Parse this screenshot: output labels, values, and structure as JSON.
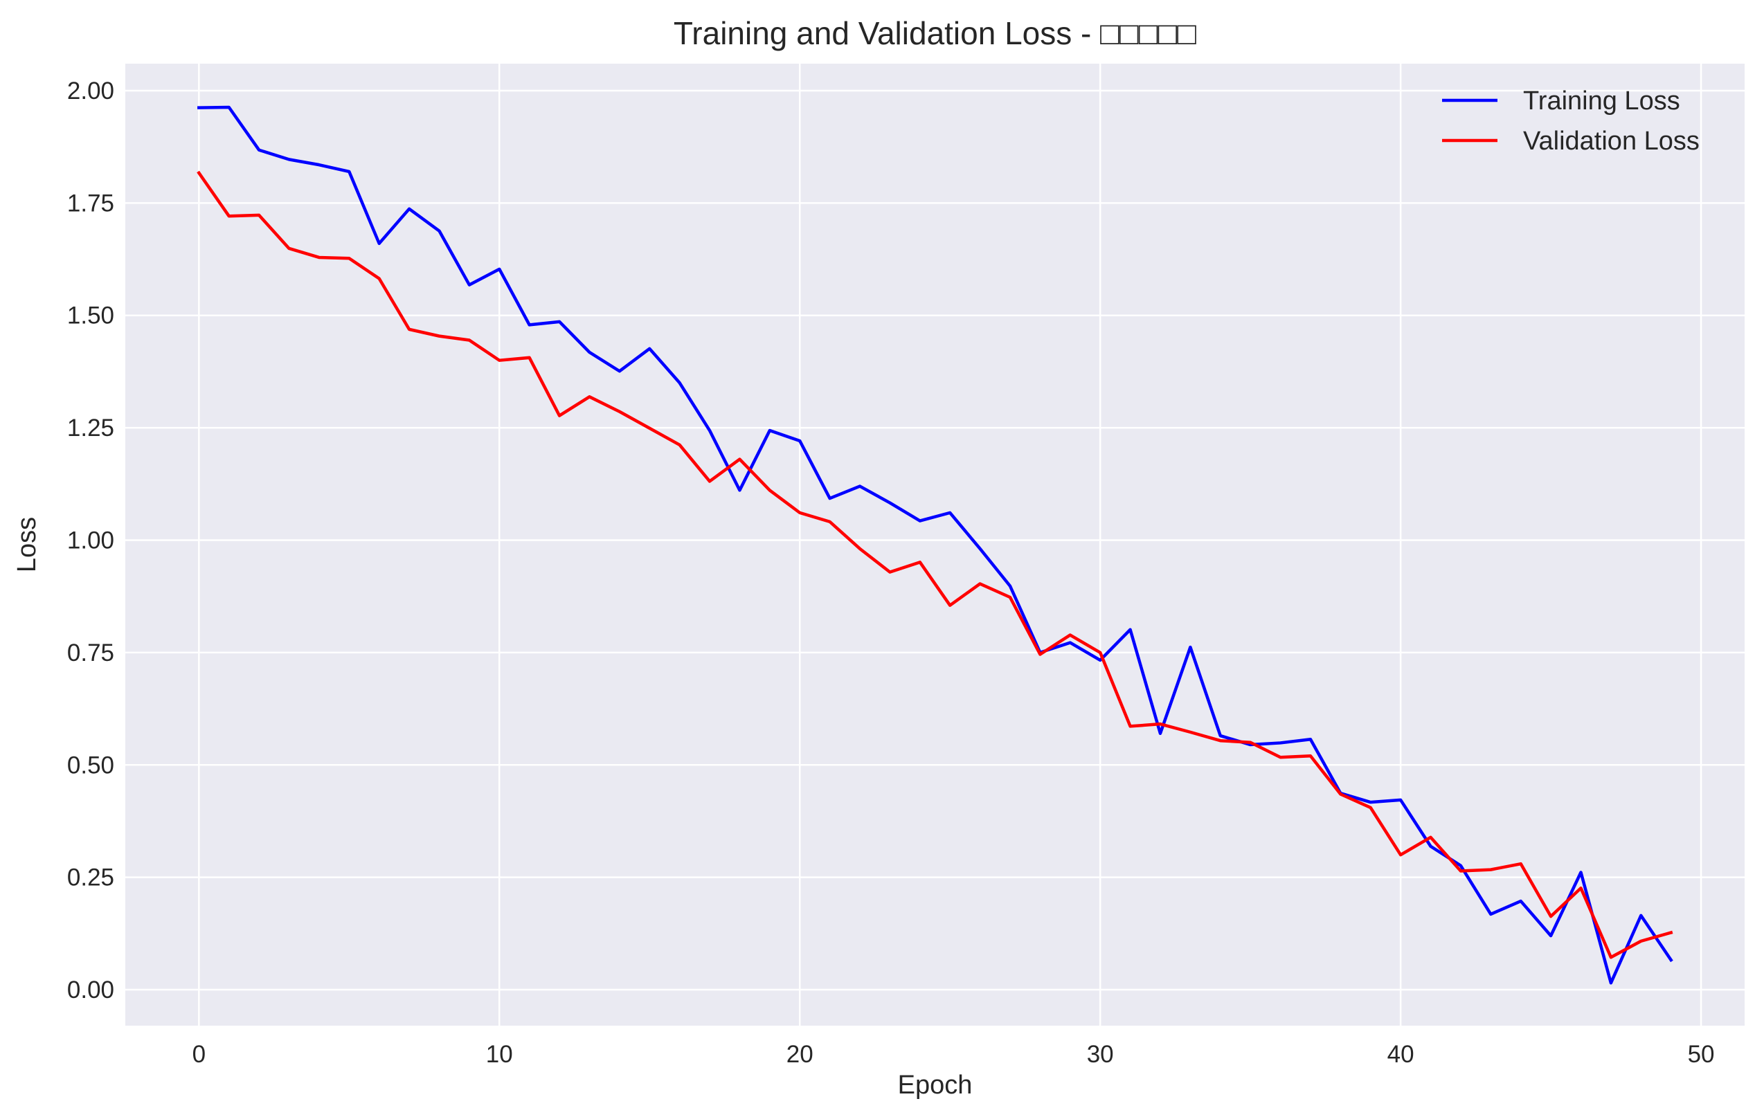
{
  "colors": {
    "plot_background": "#eaeaf2",
    "grid": "#ffffff",
    "training": "#0000ff",
    "validation": "#ff0000"
  },
  "chart_data": {
    "type": "line",
    "title": "Training and Validation Loss - □□□□□",
    "xlabel": "Epoch",
    "ylabel": "Loss",
    "xlim": [
      -2.45,
      51.45
    ],
    "ylim": [
      -0.08,
      2.06
    ],
    "xticks": [
      0,
      10,
      20,
      30,
      40,
      50
    ],
    "xtick_labels": [
      "0",
      "10",
      "20",
      "30",
      "40",
      "50"
    ],
    "yticks": [
      0.0,
      0.25,
      0.5,
      0.75,
      1.0,
      1.25,
      1.5,
      1.75,
      2.0
    ],
    "ytick_labels": [
      "0.00",
      "0.25",
      "0.50",
      "0.75",
      "1.00",
      "1.25",
      "1.50",
      "1.75",
      "2.00"
    ],
    "grid": true,
    "legend_position": "top-right",
    "x": [
      0,
      1,
      2,
      3,
      4,
      5,
      6,
      7,
      8,
      9,
      10,
      11,
      12,
      13,
      14,
      15,
      16,
      17,
      18,
      19,
      20,
      21,
      22,
      23,
      24,
      25,
      26,
      27,
      28,
      29,
      30,
      31,
      32,
      33,
      34,
      35,
      36,
      37,
      38,
      39,
      40,
      41,
      42,
      43,
      44,
      45,
      46,
      47,
      48,
      49
    ],
    "series": [
      {
        "name": "Training Loss",
        "color": "#0000ff",
        "values": [
          1.962,
          1.963,
          1.868,
          1.847,
          1.835,
          1.82,
          1.66,
          1.737,
          1.688,
          1.568,
          1.603,
          1.479,
          1.486,
          1.418,
          1.376,
          1.426,
          1.35,
          1.244,
          1.111,
          1.244,
          1.221,
          1.093,
          1.12,
          1.083,
          1.043,
          1.061,
          0.981,
          0.898,
          0.75,
          0.772,
          0.733,
          0.801,
          0.57,
          0.762,
          0.565,
          0.545,
          0.549,
          0.557,
          0.437,
          0.417,
          0.422,
          0.319,
          0.276,
          0.168,
          0.197,
          0.12,
          0.261,
          0.015,
          0.165,
          0.066
        ]
      },
      {
        "name": "Validation Loss",
        "color": "#ff0000",
        "values": [
          1.817,
          1.721,
          1.723,
          1.649,
          1.629,
          1.627,
          1.582,
          1.469,
          1.454,
          1.445,
          1.4,
          1.406,
          1.277,
          1.319,
          1.286,
          1.249,
          1.212,
          1.131,
          1.18,
          1.111,
          1.061,
          1.041,
          0.981,
          0.929,
          0.951,
          0.855,
          0.903,
          0.873,
          0.746,
          0.789,
          0.75,
          0.586,
          0.591,
          0.573,
          0.554,
          0.55,
          0.517,
          0.52,
          0.435,
          0.405,
          0.3,
          0.339,
          0.264,
          0.267,
          0.28,
          0.163,
          0.226,
          0.072,
          0.108,
          0.127
        ]
      }
    ]
  }
}
